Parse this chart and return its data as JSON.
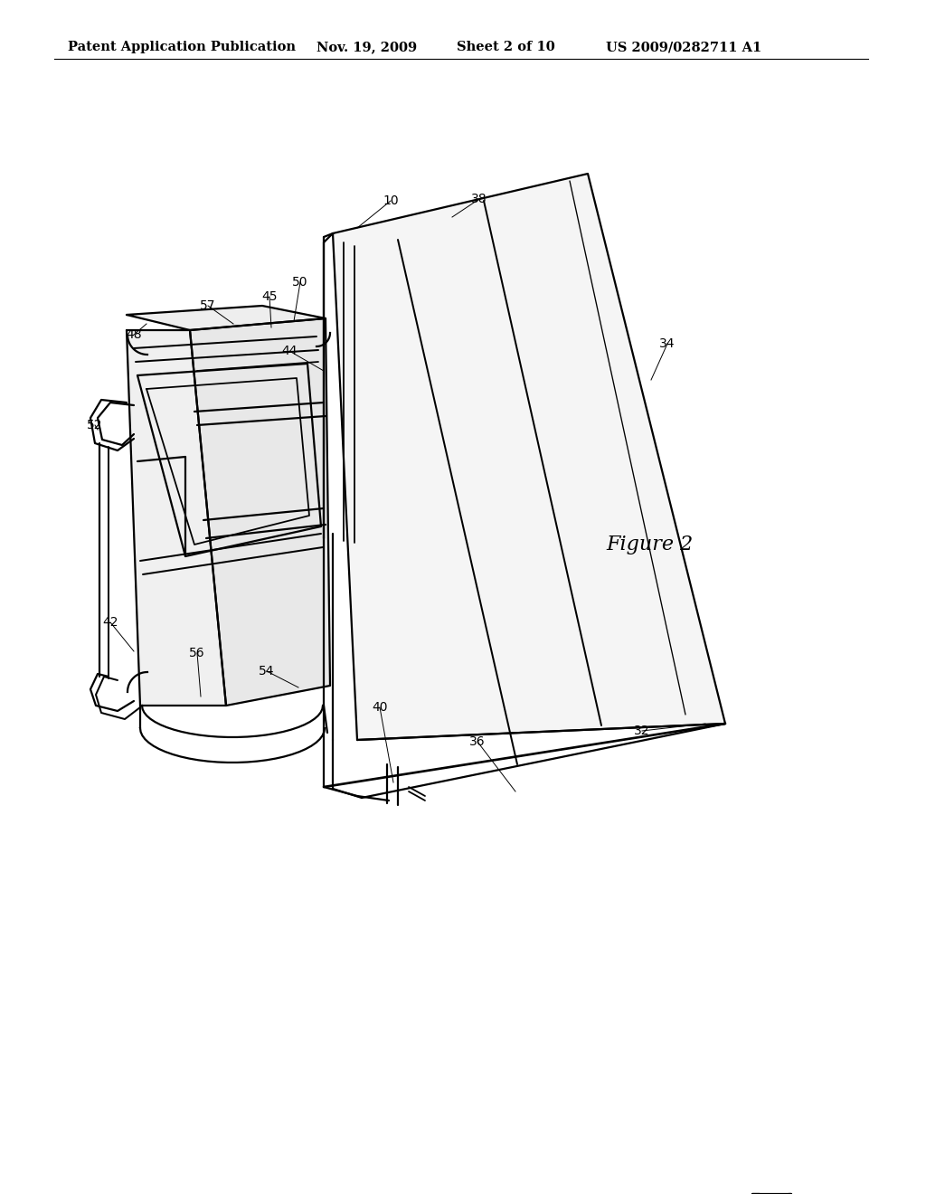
{
  "background_color": "#ffffff",
  "header_text": "Patent Application Publication",
  "header_date": "Nov. 19, 2009",
  "header_sheet": "Sheet 2 of 10",
  "header_patent": "US 2009/0282711 A1",
  "figure_label": "Figure 2",
  "title_fontsize": 10.5,
  "label_fontsize": 10,
  "fig_label_fontsize": 16
}
